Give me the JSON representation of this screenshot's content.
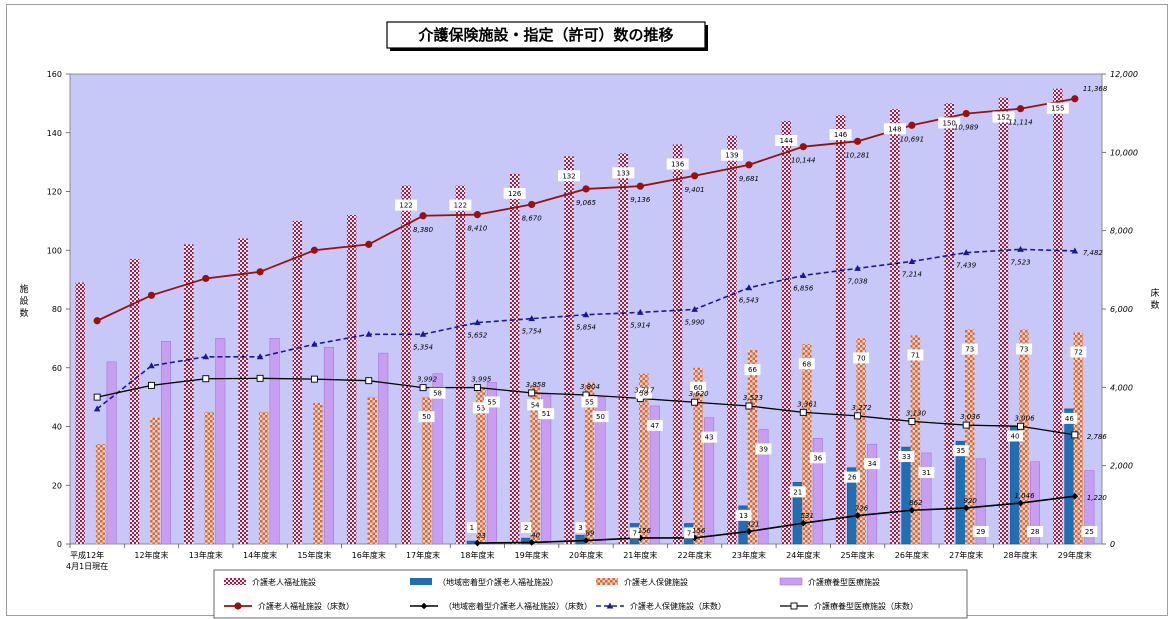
{
  "chart_data": {
    "type": "bar",
    "title": "介護保険施設・指定（許可）数の推移",
    "categories": [
      [
        "平成12年",
        "4月1日現在"
      ],
      [
        "12年度末"
      ],
      [
        "13年度末"
      ],
      [
        "14年度末"
      ],
      [
        "15年度末"
      ],
      [
        "16年度末"
      ],
      [
        "17年度末"
      ],
      [
        "18年度末"
      ],
      [
        "19年度末"
      ],
      [
        "20年度末"
      ],
      [
        "21年度末"
      ],
      [
        "22年度末"
      ],
      [
        "23年度末"
      ],
      [
        "24年度末"
      ],
      [
        "25年度末"
      ],
      [
        "26年度末"
      ],
      [
        "27年度末"
      ],
      [
        "28年度末"
      ],
      [
        "29年度末"
      ]
    ],
    "ylabel_left": "施設数",
    "ylabel_right": "床数",
    "ylim_left": [
      0,
      160
    ],
    "ylim_right": [
      0,
      12000
    ],
    "yticks_left": [
      0,
      20,
      40,
      60,
      80,
      100,
      120,
      140,
      160
    ],
    "yticks_right": [
      "0",
      "2,000",
      "4,000",
      "6,000",
      "8,000",
      "10,000",
      "12,000"
    ],
    "colors": {
      "plot_bg": "#c8c8f8",
      "bar_fukushi_a": "#9a2050",
      "bar_fukushi_b": "#f4e8ec",
      "bar_chiiki": "#1f6fb5",
      "bar_hoken_a": "#d06840",
      "bar_hoken_b": "#f2d0c0",
      "bar_ryoyo": "#c89ef0",
      "line_fukushi": "#9a0f0f",
      "line_chiiki": "#000000",
      "line_hoken": "#1a1a8c",
      "line_ryoyo": "#000000"
    },
    "bar_series": [
      {
        "name": "介護老人福祉施設",
        "values": [
          89,
          97,
          102,
          104,
          110,
          112,
          122,
          122,
          126,
          132,
          133,
          136,
          139,
          144,
          146,
          148,
          150,
          152,
          155
        ],
        "labels": [
          null,
          null,
          null,
          null,
          null,
          null,
          "122",
          "122",
          "126",
          "132",
          "133",
          "136",
          "139",
          "144",
          "146",
          "148",
          "150",
          "152",
          "155"
        ]
      },
      {
        "name": "（地域密着型介護老人福祉施設）",
        "values": [
          0,
          0,
          0,
          0,
          0,
          0,
          0,
          1,
          2,
          3,
          7,
          7,
          13,
          21,
          26,
          33,
          35,
          40,
          46
        ],
        "labels": [
          null,
          null,
          null,
          null,
          null,
          null,
          null,
          "1",
          "2",
          "3",
          "7",
          "7",
          "13",
          "21",
          "26",
          "33",
          "35",
          "40",
          "46"
        ]
      },
      {
        "name": "介護老人保健施設",
        "values": [
          34,
          43,
          45,
          45,
          48,
          50,
          50,
          53,
          54,
          55,
          58,
          60,
          66,
          68,
          70,
          71,
          73,
          73,
          72
        ],
        "labels": [
          null,
          null,
          null,
          null,
          null,
          null,
          "50",
          "53",
          "54",
          "55",
          "58",
          "60",
          "66",
          "68",
          "70",
          "71",
          "73",
          "73",
          "72"
        ]
      },
      {
        "name": "介護療養型医療施設",
        "values": [
          62,
          69,
          70,
          70,
          67,
          65,
          58,
          55,
          51,
          50,
          47,
          43,
          39,
          36,
          34,
          31,
          29,
          28,
          25
        ],
        "labels": [
          null,
          null,
          null,
          null,
          null,
          null,
          "58",
          "55",
          "51",
          "50",
          "47",
          "43",
          "39",
          "36",
          "34",
          "31",
          "29",
          "28",
          "25"
        ]
      }
    ],
    "line_series": [
      {
        "name": "介護老人福祉施設（床数）",
        "values": [
          5700,
          6350,
          6780,
          6950,
          7500,
          7650,
          8380,
          8410,
          8670,
          9065,
          9136,
          9401,
          9681,
          10144,
          10281,
          10691,
          10989,
          11114,
          11368
        ],
        "labels": [
          null,
          null,
          null,
          null,
          null,
          null,
          "8,380",
          "8,410",
          "8,670",
          "9,065",
          "9,136",
          "9,401",
          "9,681",
          "10,144",
          "10,281",
          "10,691",
          "10,989",
          "11,114",
          "11,368"
        ]
      },
      {
        "name": "（地域密着型介護老人福祉施設）（床数）",
        "values": [
          0,
          0,
          0,
          0,
          0,
          0,
          0,
          23,
          40,
          89,
          156,
          156,
          321,
          531,
          726,
          862,
          920,
          1046,
          1220
        ],
        "labels": [
          null,
          null,
          null,
          null,
          null,
          null,
          null,
          "23",
          "40",
          "89",
          "156",
          "156",
          "321",
          "531",
          "726",
          "862",
          "920",
          "1,046",
          "1,220"
        ]
      },
      {
        "name": "介護老人保健施設（床数）",
        "values": [
          3450,
          4550,
          4780,
          4780,
          5100,
          5354,
          5354,
          5652,
          5754,
          5854,
          5914,
          5990,
          6543,
          6856,
          7038,
          7214,
          7439,
          7523,
          7482
        ],
        "labels": [
          null,
          null,
          null,
          null,
          null,
          null,
          "5,354",
          "5,652",
          "5,754",
          "5,854",
          "5,914",
          "5,990",
          "6,543",
          "6,856",
          "7,038",
          "7,214",
          "7,439",
          "7,523",
          "7,482"
        ]
      },
      {
        "name": "介護療養型医療施設（床数）",
        "values": [
          3750,
          4050,
          4220,
          4230,
          4210,
          4170,
          3992,
          3995,
          3858,
          3804,
          3717,
          3620,
          3523,
          3361,
          3272,
          3130,
          3036,
          3006,
          2786
        ],
        "labels": [
          null,
          null,
          null,
          null,
          null,
          null,
          "3,992",
          "3,995",
          "3,858",
          "3,804",
          "3,717",
          "3,620",
          "3,523",
          "3,361",
          "3,272",
          "3,130",
          "3,036",
          "3,006",
          "2,786"
        ]
      }
    ],
    "legend": {
      "placement": "bottom",
      "row1": [
        "介護老人福祉施設",
        "（地域密着型介護老人福祉施設）",
        "介護老人保健施設",
        "介護療養型医療施設"
      ],
      "row2": [
        "介護老人福祉施設（床数）",
        "（地域密着型介護老人福祉施設）（床数）",
        "介護老人保健施設（床数）",
        "介護療養型医療施設（床数）"
      ]
    }
  }
}
